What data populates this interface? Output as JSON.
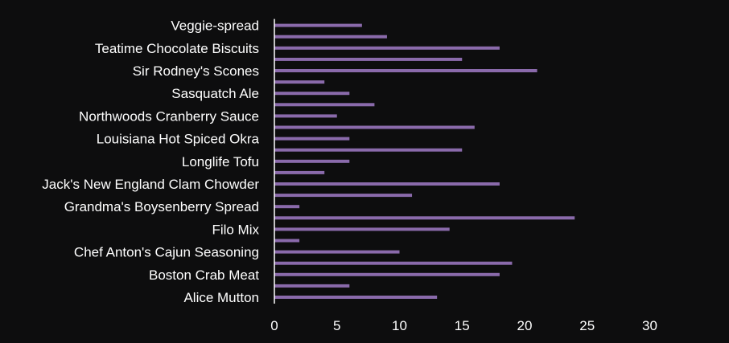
{
  "chart_data": {
    "type": "bar",
    "orientation": "horizontal",
    "bar_color": "#8a6aab",
    "axis_color": "#ffffff",
    "background": "#0d0d0e",
    "grid": false,
    "xlim": [
      0,
      30
    ],
    "xticks": [
      "0",
      "5",
      "10",
      "15",
      "20",
      "25",
      "30"
    ],
    "categories": [
      "Alice Mutton",
      "",
      "Boston Crab Meat",
      "",
      "Chef Anton's Cajun Seasoning",
      "",
      "Filo Mix",
      "",
      "Grandma's Boysenberry Spread",
      "",
      "Jack's New England Clam Chowder",
      "",
      "Longlife Tofu",
      "",
      "Louisiana Hot Spiced Okra",
      "",
      "Northwoods Cranberry Sauce",
      "",
      "Sasquatch Ale",
      "",
      "Sir Rodney's Scones",
      "",
      "Teatime Chocolate Biscuits",
      "",
      "Veggie-spread"
    ],
    "values": [
      13,
      6,
      18,
      19,
      10,
      2,
      14,
      24,
      2,
      11,
      18,
      4,
      6,
      15,
      6,
      16,
      5,
      8,
      6,
      4,
      21,
      15,
      18,
      9,
      7
    ]
  }
}
